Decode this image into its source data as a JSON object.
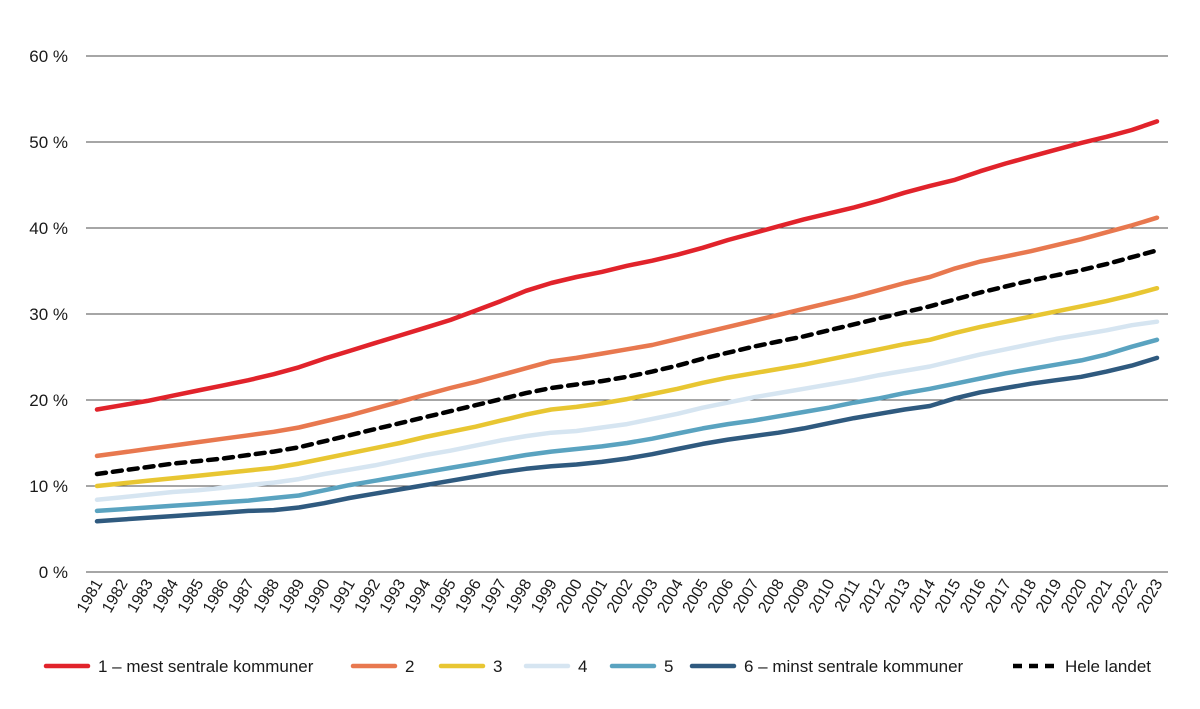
{
  "chart_data": {
    "type": "line",
    "title": "",
    "xlabel": "",
    "ylabel": "",
    "ylim": [
      0,
      60
    ],
    "yticks": [
      0,
      10,
      20,
      30,
      40,
      50,
      60
    ],
    "ytick_labels": [
      "0 %",
      "10 %",
      "20 %",
      "30 %",
      "40 %",
      "50 %",
      "60 %"
    ],
    "grid": "horizontal",
    "legend_position": "bottom",
    "x": [
      "1981",
      "1982",
      "1983",
      "1984",
      "1985",
      "1986",
      "1987",
      "1988",
      "1989",
      "1990",
      "1991",
      "1992",
      "1993",
      "1994",
      "1995",
      "1996",
      "1997",
      "1998",
      "1999",
      "2000",
      "2001",
      "2002",
      "2003",
      "2004",
      "2005",
      "2006",
      "2007",
      "2008",
      "2009",
      "2010",
      "2011",
      "2012",
      "2013",
      "2014",
      "2015",
      "2016",
      "2017",
      "2018",
      "2019",
      "2020",
      "2021",
      "2022",
      "2023"
    ],
    "series": [
      {
        "name": "1 – mest sentrale kommuner",
        "color": "#e1232b",
        "dash": "solid",
        "values": [
          18.9,
          19.4,
          19.9,
          20.5,
          21.1,
          21.7,
          22.3,
          23.0,
          23.8,
          24.8,
          25.7,
          26.6,
          27.5,
          28.4,
          29.3,
          30.4,
          31.5,
          32.7,
          33.6,
          34.3,
          34.9,
          35.6,
          36.2,
          36.9,
          37.7,
          38.6,
          39.4,
          40.2,
          41.0,
          41.7,
          42.4,
          43.2,
          44.1,
          44.9,
          45.6,
          46.6,
          47.5,
          48.3,
          49.1,
          49.9,
          50.6,
          51.4,
          52.4
        ]
      },
      {
        "name": "2",
        "color": "#e8784f",
        "dash": "solid",
        "values": [
          13.5,
          13.9,
          14.3,
          14.7,
          15.1,
          15.5,
          15.9,
          16.3,
          16.8,
          17.5,
          18.2,
          19.0,
          19.8,
          20.6,
          21.4,
          22.1,
          22.9,
          23.7,
          24.5,
          24.9,
          25.4,
          25.9,
          26.4,
          27.1,
          27.8,
          28.5,
          29.2,
          29.9,
          30.6,
          31.3,
          32.0,
          32.8,
          33.6,
          34.3,
          35.3,
          36.1,
          36.7,
          37.3,
          38.0,
          38.7,
          39.5,
          40.3,
          41.2
        ]
      },
      {
        "name": "3",
        "color": "#e8c632",
        "dash": "solid",
        "values": [
          10.0,
          10.3,
          10.6,
          10.9,
          11.2,
          11.5,
          11.8,
          12.1,
          12.6,
          13.2,
          13.8,
          14.4,
          15.0,
          15.7,
          16.3,
          16.9,
          17.6,
          18.3,
          18.9,
          19.2,
          19.6,
          20.1,
          20.7,
          21.3,
          22.0,
          22.6,
          23.1,
          23.6,
          24.1,
          24.7,
          25.3,
          25.9,
          26.5,
          27.0,
          27.8,
          28.5,
          29.1,
          29.7,
          30.3,
          30.9,
          31.5,
          32.2,
          33.0
        ]
      },
      {
        "name": "4",
        "color": "#d6e5f1",
        "dash": "solid",
        "values": [
          8.4,
          8.7,
          9.0,
          9.3,
          9.5,
          9.8,
          10.1,
          10.4,
          10.8,
          11.4,
          11.9,
          12.4,
          13.0,
          13.6,
          14.1,
          14.7,
          15.3,
          15.8,
          16.2,
          16.4,
          16.8,
          17.2,
          17.8,
          18.4,
          19.1,
          19.7,
          20.3,
          20.8,
          21.3,
          21.8,
          22.3,
          22.9,
          23.4,
          23.9,
          24.6,
          25.3,
          25.9,
          26.5,
          27.1,
          27.6,
          28.1,
          28.7,
          29.1
        ]
      },
      {
        "name": "5",
        "color": "#5aa3c0",
        "dash": "solid",
        "values": [
          7.1,
          7.3,
          7.5,
          7.7,
          7.9,
          8.1,
          8.3,
          8.6,
          8.9,
          9.5,
          10.1,
          10.6,
          11.1,
          11.6,
          12.1,
          12.6,
          13.1,
          13.6,
          14.0,
          14.3,
          14.6,
          15.0,
          15.5,
          16.1,
          16.7,
          17.2,
          17.6,
          18.1,
          18.6,
          19.1,
          19.7,
          20.2,
          20.8,
          21.3,
          21.9,
          22.5,
          23.1,
          23.6,
          24.1,
          24.6,
          25.3,
          26.2,
          27.0
        ]
      },
      {
        "name": "6 – minst sentrale kommuner",
        "color": "#2f5a7f",
        "dash": "solid",
        "values": [
          5.9,
          6.1,
          6.3,
          6.5,
          6.7,
          6.9,
          7.1,
          7.2,
          7.5,
          8.0,
          8.6,
          9.1,
          9.6,
          10.1,
          10.6,
          11.1,
          11.6,
          12.0,
          12.3,
          12.5,
          12.8,
          13.2,
          13.7,
          14.3,
          14.9,
          15.4,
          15.8,
          16.2,
          16.7,
          17.3,
          17.9,
          18.4,
          18.9,
          19.3,
          20.2,
          20.9,
          21.4,
          21.9,
          22.3,
          22.7,
          23.3,
          24.0,
          24.9
        ]
      },
      {
        "name": "Hele landet",
        "color": "#000000",
        "dash": "dashed",
        "values": [
          11.4,
          11.8,
          12.2,
          12.6,
          12.9,
          13.2,
          13.6,
          14.0,
          14.5,
          15.2,
          15.9,
          16.6,
          17.3,
          18.0,
          18.7,
          19.4,
          20.1,
          20.8,
          21.4,
          21.8,
          22.2,
          22.7,
          23.3,
          24.0,
          24.8,
          25.5,
          26.2,
          26.8,
          27.4,
          28.1,
          28.8,
          29.5,
          30.2,
          30.9,
          31.7,
          32.5,
          33.2,
          33.9,
          34.5,
          35.1,
          35.8,
          36.6,
          37.4
        ]
      }
    ]
  }
}
